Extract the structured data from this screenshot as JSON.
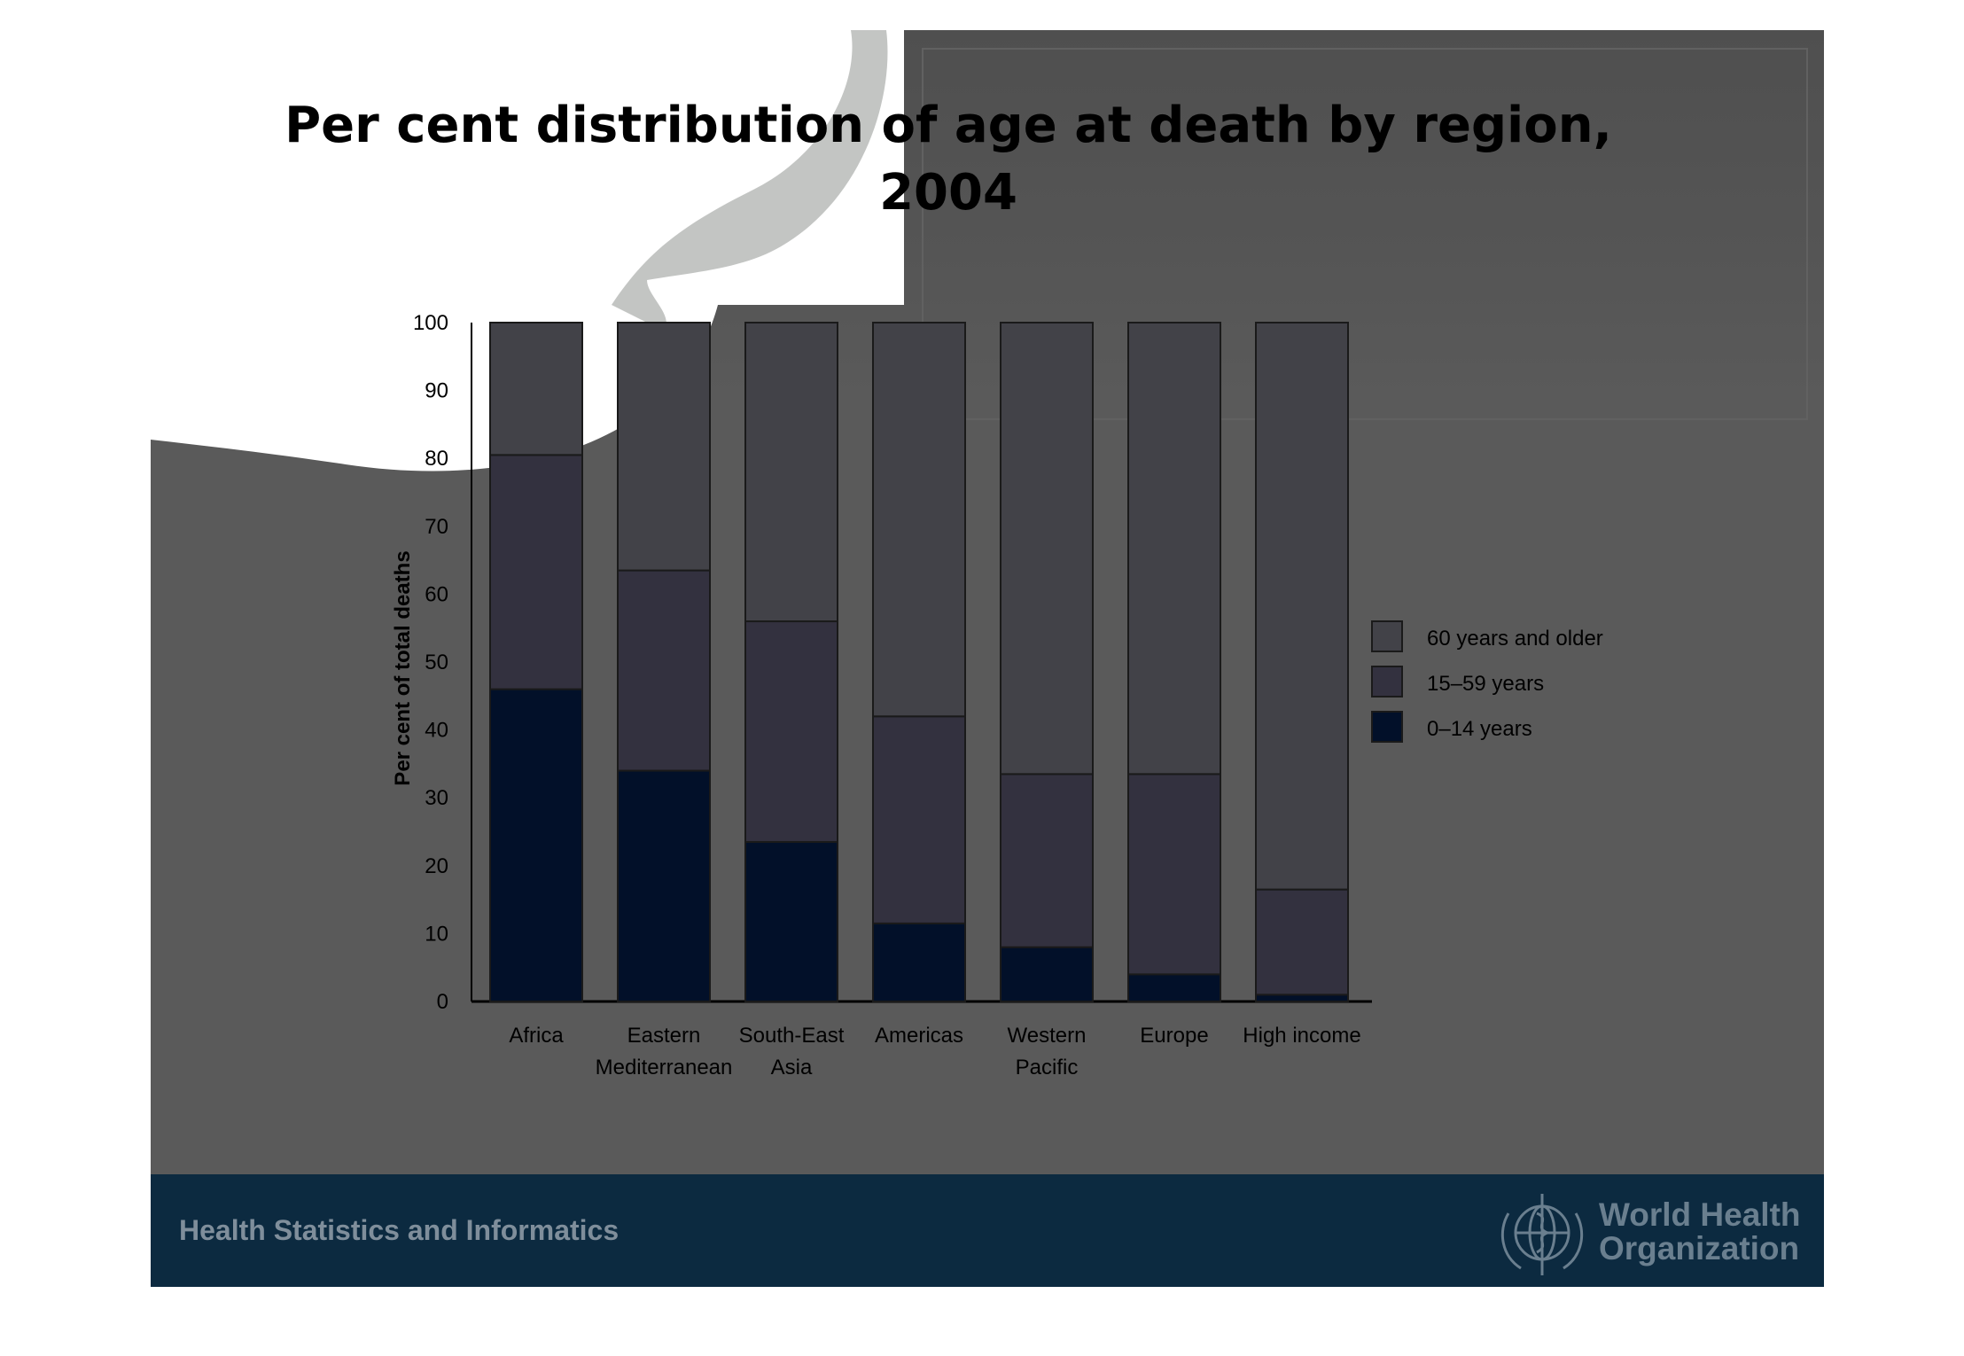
{
  "chart_data": {
    "type": "bar",
    "stacked": true,
    "title": "Per cent distribution of age at death by region, 2004",
    "ylabel": "Per cent of total deaths",
    "xlabel": "",
    "ylim": [
      0,
      100
    ],
    "yticks": [
      0,
      10,
      20,
      30,
      40,
      50,
      60,
      70,
      80,
      90,
      100
    ],
    "categories": [
      "Africa",
      "Eastern Mediterranean",
      "South-East Asia",
      "Americas",
      "Western Pacific",
      "Europe",
      "High income"
    ],
    "category_lines": [
      [
        "Africa"
      ],
      [
        "Eastern",
        "Mediterranean"
      ],
      [
        "South-East",
        "Asia"
      ],
      [
        "Americas"
      ],
      [
        "Western",
        "Pacific"
      ],
      [
        "Europe"
      ],
      [
        "High income"
      ]
    ],
    "series": [
      {
        "name": "0–14 years",
        "color": "#021029",
        "values": [
          46,
          34,
          23.5,
          11.5,
          8,
          4,
          1
        ]
      },
      {
        "name": "15–59 years",
        "color": "#33313f",
        "values": [
          34.5,
          29.5,
          32.5,
          30.5,
          25.5,
          29.5,
          15.5
        ]
      },
      {
        "name": "60 years and older",
        "color": "#424248",
        "values": [
          19.5,
          36.5,
          44,
          58,
          66.5,
          66.5,
          83.5
        ]
      }
    ],
    "legend": {
      "position": "right",
      "order": [
        "60 years and older",
        "15–59 years",
        "0–14 years"
      ]
    },
    "grid": false
  },
  "footer": {
    "label": "Health Statistics and Informatics",
    "org_line1": "World Health",
    "org_line2": "Organization",
    "logo_icon": "who-emblem-icon"
  },
  "colors": {
    "slide_bg": "#5a5a5a",
    "footer_band": "#0c2a40"
  }
}
